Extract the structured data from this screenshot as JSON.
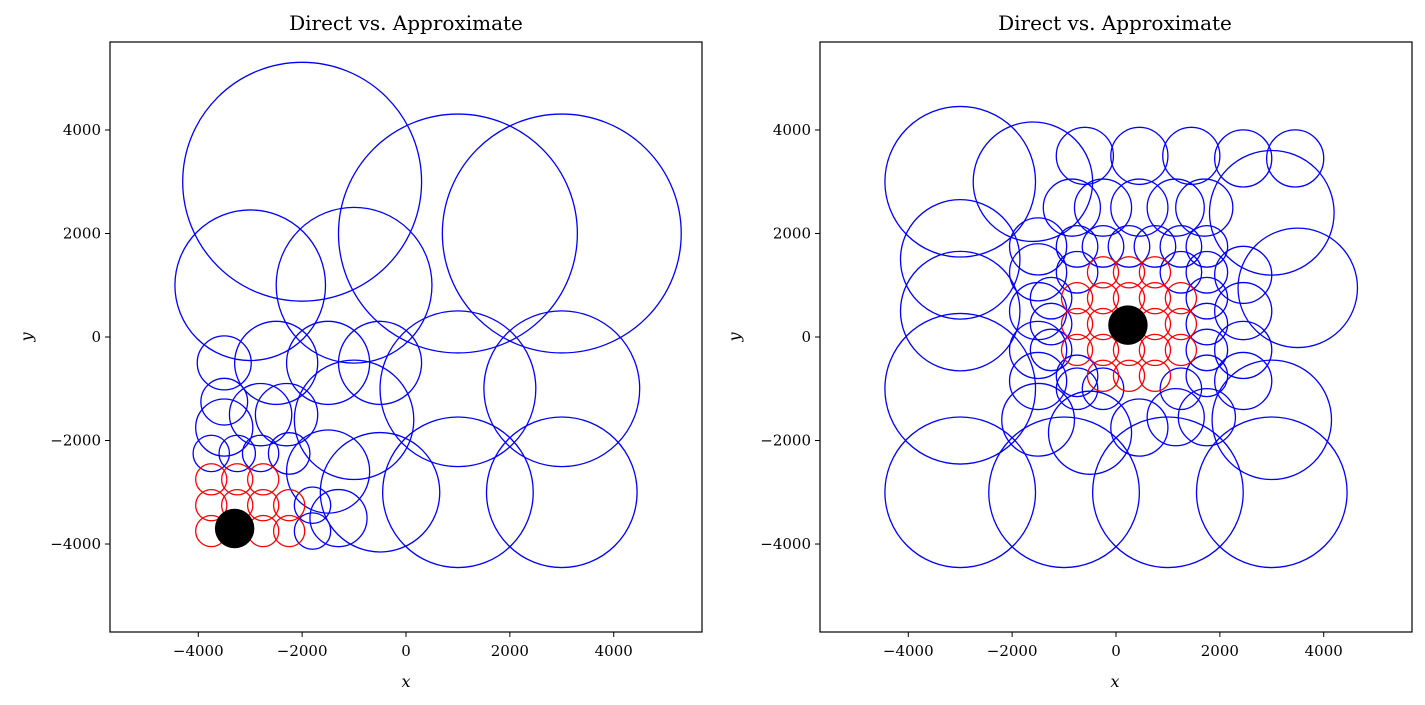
{
  "chart_data": [
    {
      "type": "scatter",
      "title": "Direct vs. Approximate",
      "xlabel": "x",
      "ylabel": "y",
      "xlim": [
        -5700,
        5700
      ],
      "ylim": [
        -5700,
        5700
      ],
      "xticks": [
        -4000,
        -2000,
        0,
        2000,
        4000
      ],
      "yticks": [
        -4000,
        -2000,
        0,
        2000,
        4000
      ],
      "xtick_labels": [
        "−4000",
        "−2000",
        "0",
        "2000",
        "4000"
      ],
      "ytick_labels": [
        "−4000",
        "−2000",
        "0",
        "2000",
        "4000"
      ],
      "target": {
        "x": -3300,
        "y": -3700,
        "r": 380,
        "color": "#000000"
      },
      "direct": {
        "color": "#ff0000",
        "circles": [
          {
            "x": -3750,
            "y": -2750,
            "r": 300
          },
          {
            "x": -3250,
            "y": -2750,
            "r": 300
          },
          {
            "x": -2750,
            "y": -2750,
            "r": 300
          },
          {
            "x": -3750,
            "y": -3250,
            "r": 300
          },
          {
            "x": -3250,
            "y": -3250,
            "r": 300
          },
          {
            "x": -2750,
            "y": -3250,
            "r": 300
          },
          {
            "x": -2250,
            "y": -3250,
            "r": 300
          },
          {
            "x": -3750,
            "y": -3750,
            "r": 300
          },
          {
            "x": -2750,
            "y": -3750,
            "r": 300
          },
          {
            "x": -2250,
            "y": -3750,
            "r": 300
          }
        ]
      },
      "approx": {
        "color": "#0000ff",
        "circles": [
          {
            "x": -2000,
            "y": 3000,
            "r": 2300
          },
          {
            "x": 1000,
            "y": 2000,
            "r": 2300
          },
          {
            "x": 3000,
            "y": 2000,
            "r": 2300
          },
          {
            "x": -3000,
            "y": 1000,
            "r": 1450
          },
          {
            "x": -1000,
            "y": 1000,
            "r": 1500
          },
          {
            "x": 1000,
            "y": -1000,
            "r": 1500
          },
          {
            "x": 3000,
            "y": -1000,
            "r": 1500
          },
          {
            "x": 1000,
            "y": -3000,
            "r": 1450
          },
          {
            "x": 3000,
            "y": -3000,
            "r": 1450
          },
          {
            "x": -500,
            "y": -3000,
            "r": 1150
          },
          {
            "x": -1000,
            "y": -1600,
            "r": 1150
          },
          {
            "x": -3500,
            "y": -500,
            "r": 520
          },
          {
            "x": -2500,
            "y": -500,
            "r": 800
          },
          {
            "x": -1500,
            "y": -500,
            "r": 800
          },
          {
            "x": -500,
            "y": -500,
            "r": 800
          },
          {
            "x": -3500,
            "y": -1250,
            "r": 450
          },
          {
            "x": -2800,
            "y": -1500,
            "r": 600
          },
          {
            "x": -2300,
            "y": -1500,
            "r": 600
          },
          {
            "x": -3500,
            "y": -1750,
            "r": 550
          },
          {
            "x": -3750,
            "y": -2250,
            "r": 350
          },
          {
            "x": -3250,
            "y": -2250,
            "r": 350
          },
          {
            "x": -2800,
            "y": -2250,
            "r": 350
          },
          {
            "x": -2250,
            "y": -2250,
            "r": 400
          },
          {
            "x": -1500,
            "y": -2600,
            "r": 800
          },
          {
            "x": -1800,
            "y": -3250,
            "r": 350
          },
          {
            "x": -1300,
            "y": -3500,
            "r": 550
          },
          {
            "x": -1800,
            "y": -3750,
            "r": 350
          }
        ]
      }
    },
    {
      "type": "scatter",
      "title": "Direct vs. Approximate",
      "xlabel": "x",
      "ylabel": "y",
      "xlim": [
        -5700,
        5700
      ],
      "ylim": [
        -5700,
        5700
      ],
      "xticks": [
        -4000,
        -2000,
        0,
        2000,
        4000
      ],
      "yticks": [
        -4000,
        -2000,
        0,
        2000,
        4000
      ],
      "xtick_labels": [
        "−4000",
        "−2000",
        "0",
        "2000",
        "4000"
      ],
      "ytick_labels": [
        "−4000",
        "−2000",
        "0",
        "2000",
        "4000"
      ],
      "target": {
        "x": 230,
        "y": 230,
        "r": 380,
        "color": "#000000"
      },
      "direct": {
        "color": "#ff0000",
        "circles": [
          {
            "x": -250,
            "y": 1250,
            "r": 300
          },
          {
            "x": 250,
            "y": 1250,
            "r": 300
          },
          {
            "x": 750,
            "y": 1250,
            "r": 300
          },
          {
            "x": -750,
            "y": 750,
            "r": 300
          },
          {
            "x": -250,
            "y": 750,
            "r": 300
          },
          {
            "x": 250,
            "y": 750,
            "r": 300
          },
          {
            "x": 750,
            "y": 750,
            "r": 300
          },
          {
            "x": 1250,
            "y": 750,
            "r": 300
          },
          {
            "x": -750,
            "y": 250,
            "r": 300
          },
          {
            "x": -250,
            "y": 250,
            "r": 300
          },
          {
            "x": 750,
            "y": 250,
            "r": 300
          },
          {
            "x": 1250,
            "y": 250,
            "r": 300
          },
          {
            "x": -750,
            "y": -250,
            "r": 300
          },
          {
            "x": -250,
            "y": -250,
            "r": 300
          },
          {
            "x": 250,
            "y": -250,
            "r": 300
          },
          {
            "x": 750,
            "y": -250,
            "r": 300
          },
          {
            "x": 1250,
            "y": -250,
            "r": 300
          },
          {
            "x": -250,
            "y": -750,
            "r": 300
          },
          {
            "x": 250,
            "y": -750,
            "r": 300
          },
          {
            "x": 750,
            "y": -750,
            "r": 300
          }
        ]
      },
      "approx": {
        "color": "#0000ff",
        "circles": [
          {
            "x": -3000,
            "y": 3000,
            "r": 1450
          },
          {
            "x": -1600,
            "y": 3000,
            "r": 1150
          },
          {
            "x": -3000,
            "y": 1500,
            "r": 1150
          },
          {
            "x": -3000,
            "y": 500,
            "r": 1150
          },
          {
            "x": -3000,
            "y": -1000,
            "r": 1450
          },
          {
            "x": -3000,
            "y": -3000,
            "r": 1450
          },
          {
            "x": -1000,
            "y": -3000,
            "r": 1450
          },
          {
            "x": 1000,
            "y": -3000,
            "r": 1450
          },
          {
            "x": 3000,
            "y": -3000,
            "r": 1450
          },
          {
            "x": 3000,
            "y": -1600,
            "r": 1150
          },
          {
            "x": 3500,
            "y": 950,
            "r": 1150
          },
          {
            "x": 3000,
            "y": 2400,
            "r": 1200
          },
          {
            "x": -600,
            "y": 3500,
            "r": 550
          },
          {
            "x": 450,
            "y": 3500,
            "r": 550
          },
          {
            "x": 1450,
            "y": 3500,
            "r": 550
          },
          {
            "x": 2450,
            "y": 3450,
            "r": 550
          },
          {
            "x": 3450,
            "y": 3450,
            "r": 550
          },
          {
            "x": -850,
            "y": 2500,
            "r": 550
          },
          {
            "x": -250,
            "y": 2500,
            "r": 550
          },
          {
            "x": 450,
            "y": 2500,
            "r": 550
          },
          {
            "x": 1150,
            "y": 2500,
            "r": 550
          },
          {
            "x": 1700,
            "y": 2500,
            "r": 550
          },
          {
            "x": -1500,
            "y": 1750,
            "r": 550
          },
          {
            "x": -1500,
            "y": 1250,
            "r": 550
          },
          {
            "x": -1500,
            "y": 500,
            "r": 550
          },
          {
            "x": -1500,
            "y": -250,
            "r": 550
          },
          {
            "x": -1500,
            "y": -850,
            "r": 550
          },
          {
            "x": -1500,
            "y": -1600,
            "r": 700
          },
          {
            "x": -500,
            "y": -1850,
            "r": 800
          },
          {
            "x": 450,
            "y": -1750,
            "r": 550
          },
          {
            "x": 1150,
            "y": -1550,
            "r": 550
          },
          {
            "x": 1750,
            "y": -1550,
            "r": 550
          },
          {
            "x": 2450,
            "y": -850,
            "r": 550
          },
          {
            "x": 2450,
            "y": 500,
            "r": 550
          },
          {
            "x": 2450,
            "y": 1200,
            "r": 550
          },
          {
            "x": 2450,
            "y": -250,
            "r": 550
          },
          {
            "x": -750,
            "y": 1750,
            "r": 400
          },
          {
            "x": -250,
            "y": 1750,
            "r": 400
          },
          {
            "x": 250,
            "y": 1750,
            "r": 400
          },
          {
            "x": 750,
            "y": 1750,
            "r": 400
          },
          {
            "x": 1250,
            "y": 1750,
            "r": 400
          },
          {
            "x": 1750,
            "y": 1750,
            "r": 400
          },
          {
            "x": -1250,
            "y": 750,
            "r": 400
          },
          {
            "x": -1250,
            "y": 250,
            "r": 400
          },
          {
            "x": -1250,
            "y": -250,
            "r": 400
          },
          {
            "x": -750,
            "y": -750,
            "r": 400
          },
          {
            "x": -750,
            "y": -1000,
            "r": 400
          },
          {
            "x": -250,
            "y": -1000,
            "r": 400
          },
          {
            "x": 1250,
            "y": -1000,
            "r": 400
          },
          {
            "x": 1750,
            "y": -750,
            "r": 400
          },
          {
            "x": 1750,
            "y": -250,
            "r": 400
          },
          {
            "x": 1750,
            "y": 250,
            "r": 400
          },
          {
            "x": 1750,
            "y": 750,
            "r": 400
          },
          {
            "x": 1750,
            "y": 1250,
            "r": 400
          },
          {
            "x": -750,
            "y": 1250,
            "r": 400
          },
          {
            "x": 1250,
            "y": 1250,
            "r": 400
          }
        ]
      }
    }
  ]
}
